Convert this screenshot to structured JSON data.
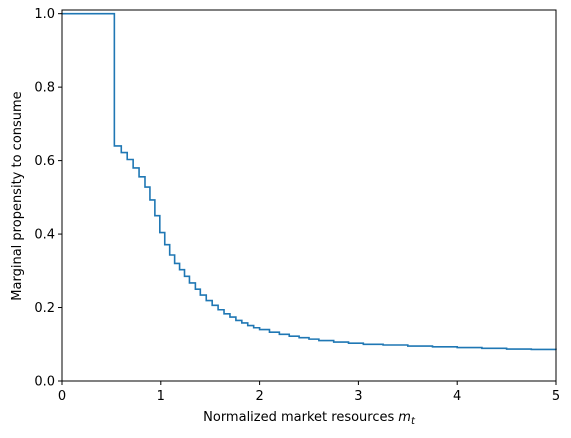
{
  "chart_data": {
    "type": "line",
    "title": "",
    "xlabel": "Normalized market resources",
    "xlabel_symbol": "m",
    "xlabel_subscript": "t",
    "ylabel": "Marginal propensity to consume",
    "xlim": [
      0,
      5
    ],
    "ylim": [
      0,
      1.01
    ],
    "x_ticks": [
      "0",
      "1",
      "2",
      "3",
      "4",
      "5"
    ],
    "y_ticks": [
      "0.0",
      "0.2",
      "0.4",
      "0.6",
      "0.8",
      "1.0"
    ],
    "grid": false,
    "legend": "none",
    "step": true,
    "color": "#1f77b4",
    "series": [
      {
        "x": [
          0.0,
          0.53,
          0.6,
          0.66,
          0.72,
          0.78,
          0.84,
          0.89,
          0.94,
          0.99,
          1.04,
          1.09,
          1.14,
          1.19,
          1.24,
          1.29,
          1.35,
          1.4,
          1.46,
          1.52,
          1.58,
          1.64,
          1.7,
          1.76,
          1.82,
          1.88,
          1.94,
          2.0,
          2.1,
          2.2,
          2.3,
          2.4,
          2.5,
          2.6,
          2.75,
          2.9,
          3.05,
          3.25,
          3.5,
          3.75,
          4.0,
          4.25,
          4.5,
          4.75,
          5.0
        ],
        "y": [
          1.0,
          0.64,
          0.622,
          0.603,
          0.58,
          0.556,
          0.528,
          0.493,
          0.45,
          0.404,
          0.371,
          0.343,
          0.32,
          0.303,
          0.285,
          0.267,
          0.25,
          0.234,
          0.219,
          0.206,
          0.194,
          0.183,
          0.174,
          0.165,
          0.158,
          0.151,
          0.145,
          0.14,
          0.133,
          0.127,
          0.122,
          0.118,
          0.114,
          0.11,
          0.106,
          0.103,
          0.1,
          0.098,
          0.095,
          0.093,
          0.091,
          0.089,
          0.087,
          0.086,
          0.085
        ]
      }
    ]
  }
}
